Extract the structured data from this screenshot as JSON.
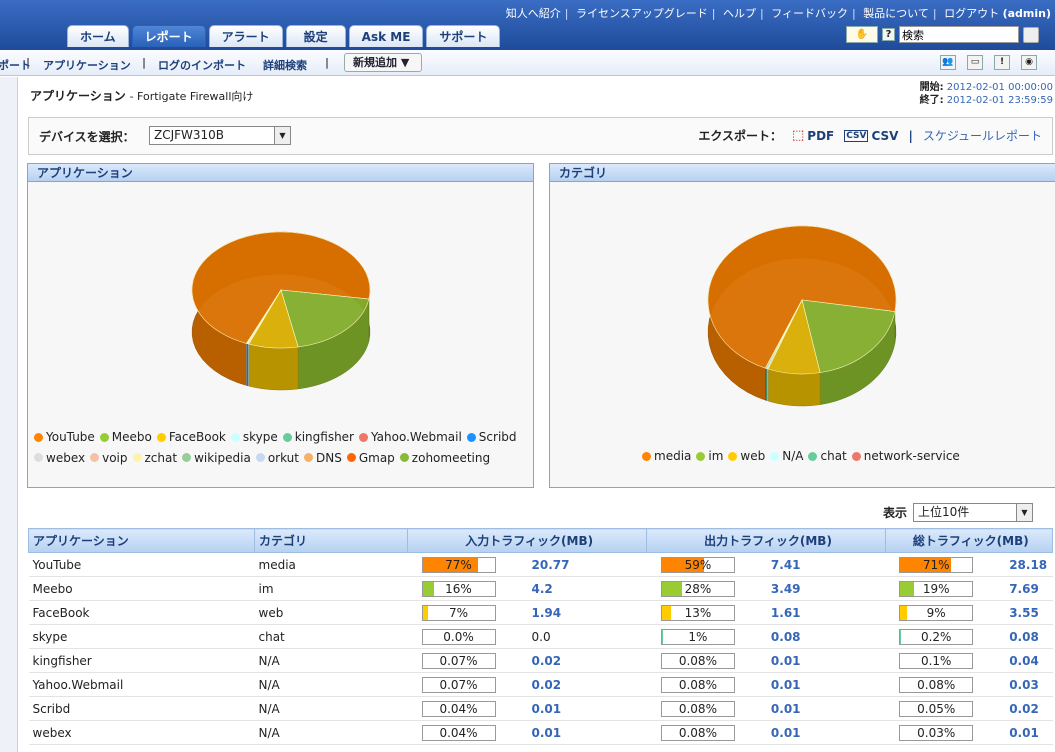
{
  "top_links": [
    "知人へ紹介",
    "ライセンスアップグレード",
    "ヘルプ",
    "フィードバック",
    "製品について",
    "ログアウト"
  ],
  "user": "(admin)",
  "tabs": [
    {
      "label": "ホーム",
      "active": false
    },
    {
      "label": "レポート",
      "active": true
    },
    {
      "label": "アラート",
      "active": false
    },
    {
      "label": "設定",
      "active": false
    },
    {
      "label": "Ask ME",
      "active": false
    },
    {
      "label": "サポート",
      "active": false
    }
  ],
  "search": {
    "value": "検索",
    "help": "?"
  },
  "subnav": {
    "item0": "ポート",
    "item1": "アプリケーション",
    "item2": "ログのインポート",
    "item3": "詳細検索",
    "newadd": "新規追加"
  },
  "page": {
    "title": "アプリケーション",
    "subtitle": "- Fortigate Firewall向け"
  },
  "period": {
    "start_label": "開始:",
    "start": "2012-02-01 00:00:00",
    "end_label": "終了:",
    "end": "2012-02-01 23:59:59"
  },
  "device": {
    "label": "デバイスを選択：",
    "value": "ZCJFW310B"
  },
  "export": {
    "label": "エクスポート：",
    "pdf": "PDF",
    "csv": "CSV",
    "csv_icon": "CSV",
    "schedule": "スケジュールレポート"
  },
  "chart_data": [
    {
      "type": "pie",
      "title": "アプリケーション",
      "categories": [
        "YouTube",
        "Meebo",
        "FaceBook",
        "skype",
        "kingfisher",
        "Yahoo.Webmail",
        "Scribd",
        "webex",
        "voip",
        "zchat",
        "wikipedia",
        "orkut",
        "DNS",
        "Gmap",
        "zohomeeting"
      ],
      "values": [
        28.18,
        7.69,
        3.55,
        0.08,
        0.04,
        0.03,
        0.02,
        0.01,
        0,
        0,
        0,
        0,
        0,
        0,
        0
      ],
      "colors": [
        "#ff8400",
        "#99cc33",
        "#ffcc00",
        "#ccffff",
        "#66cc99",
        "#ee7766",
        "#1e90ff",
        "#dddddd",
        "#f4c2a8",
        "#fff2a8",
        "#99cc99",
        "#c8d8f0",
        "#f3b266",
        "#ff6600",
        "#88bb33"
      ]
    },
    {
      "type": "pie",
      "title": "カテゴリ",
      "categories": [
        "media",
        "im",
        "web",
        "N/A",
        "chat",
        "network-service"
      ],
      "values": [
        28.18,
        7.69,
        3.55,
        0.1,
        0.08,
        0.01
      ],
      "colors": [
        "#ff8400",
        "#99cc33",
        "#ffcc00",
        "#ccffff",
        "#66cc99",
        "#ee7766"
      ]
    }
  ],
  "display": {
    "label": "表示",
    "value": "上位10件"
  },
  "table": {
    "headers": [
      "アプリケーション",
      "カテゴリ",
      "入力トラフィック(MB)",
      "出力トラフィック(MB)",
      "総トラフィック(MB)"
    ],
    "rows": [
      {
        "app": "YouTube",
        "cat": "media",
        "in_pct": "77%",
        "in": "20.77",
        "out_pct": "59%",
        "out": "7.41",
        "tot_pct": "71%",
        "tot": "28.18",
        "color": "#ff8400",
        "in_fill": 0.77,
        "out_fill": 0.59,
        "tot_fill": 0.71,
        "in_plain": false
      },
      {
        "app": "Meebo",
        "cat": "im",
        "in_pct": "16%",
        "in": "4.2",
        "out_pct": "28%",
        "out": "3.49",
        "tot_pct": "19%",
        "tot": "7.69",
        "color": "#99cc33",
        "in_fill": 0.16,
        "out_fill": 0.28,
        "tot_fill": 0.19,
        "in_plain": false
      },
      {
        "app": "FaceBook",
        "cat": "web",
        "in_pct": "7%",
        "in": "1.94",
        "out_pct": "13%",
        "out": "1.61",
        "tot_pct": "9%",
        "tot": "3.55",
        "color": "#ffcc00",
        "in_fill": 0.07,
        "out_fill": 0.13,
        "tot_fill": 0.09,
        "in_plain": false
      },
      {
        "app": "skype",
        "cat": "chat",
        "in_pct": "0.0%",
        "in": "0.0",
        "out_pct": "1%",
        "out": "0.08",
        "tot_pct": "0.2%",
        "tot": "0.08",
        "color": "#66cc99",
        "in_fill": 0,
        "out_fill": 0.01,
        "tot_fill": 0.002,
        "in_plain": true
      },
      {
        "app": "kingfisher",
        "cat": "N/A",
        "in_pct": "0.07%",
        "in": "0.02",
        "out_pct": "0.08%",
        "out": "0.01",
        "tot_pct": "0.1%",
        "tot": "0.04",
        "color": "#ccffff",
        "in_fill": 0,
        "out_fill": 0,
        "tot_fill": 0,
        "in_plain": false
      },
      {
        "app": "Yahoo.Webmail",
        "cat": "N/A",
        "in_pct": "0.07%",
        "in": "0.02",
        "out_pct": "0.08%",
        "out": "0.01",
        "tot_pct": "0.08%",
        "tot": "0.03",
        "color": "#ccffff",
        "in_fill": 0,
        "out_fill": 0,
        "tot_fill": 0,
        "in_plain": false
      },
      {
        "app": "Scribd",
        "cat": "N/A",
        "in_pct": "0.04%",
        "in": "0.01",
        "out_pct": "0.08%",
        "out": "0.01",
        "tot_pct": "0.05%",
        "tot": "0.02",
        "color": "#ccffff",
        "in_fill": 0,
        "out_fill": 0,
        "tot_fill": 0,
        "in_plain": false
      },
      {
        "app": "webex",
        "cat": "N/A",
        "in_pct": "0.04%",
        "in": "0.01",
        "out_pct": "0.08%",
        "out": "0.01",
        "tot_pct": "0.03%",
        "tot": "0.01",
        "color": "#ccffff",
        "in_fill": 0,
        "out_fill": 0,
        "tot_fill": 0,
        "in_plain": false
      }
    ]
  },
  "icons": {
    "top_right": [
      "people-icon",
      "print-icon",
      "alert-icon",
      "report-icon"
    ],
    "search_bar": "tour-icon"
  }
}
